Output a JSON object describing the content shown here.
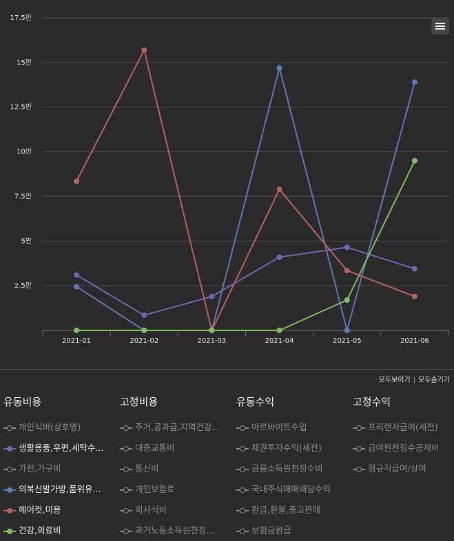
{
  "chart_data": {
    "type": "line",
    "categories": [
      "2021-01",
      "2021-02",
      "2021-03",
      "2021-04",
      "2021-05",
      "2021-06"
    ],
    "y_ticks": [
      "2.5만",
      "5만",
      "7.5만",
      "10만",
      "12.5만",
      "15만",
      "17.5만"
    ],
    "ylim": [
      0,
      175000
    ],
    "grid": true,
    "series": [
      {
        "name": "생활용품,우편,세탁수...",
        "color": "#7466b6",
        "values": [
          31000,
          8500,
          19000,
          41000,
          46500,
          34500
        ]
      },
      {
        "name": "의복신발가방,품위유...",
        "color": "#5f79b5",
        "values": [
          24500,
          0,
          0,
          147000,
          0,
          139000
        ]
      },
      {
        "name": "헤어컷,미용",
        "color": "#b5655c",
        "values": [
          83500,
          157000,
          0,
          79000,
          33500,
          19000
        ]
      },
      {
        "name": "건강,의료비",
        "color": "#83c062",
        "values": [
          0,
          0,
          0,
          0,
          17000,
          95000
        ]
      }
    ]
  },
  "menu_icon": "hamburger-icon",
  "toggles": {
    "show_all": "모두보이기",
    "separator": "|",
    "hide_all": "모두숨기기"
  },
  "legend": {
    "columns": [
      {
        "title": "유동비용",
        "items": [
          {
            "label": "개인식비(상호명)",
            "active": false
          },
          {
            "label": "생활용품,우편,세탁수...",
            "active": true,
            "color": "#7466b6"
          },
          {
            "label": "가전,가구비",
            "active": false
          },
          {
            "label": "의복신발가방,품위유...",
            "active": true,
            "color": "#5f79b5"
          },
          {
            "label": "헤어컷,미용",
            "active": true,
            "color": "#b5655c"
          },
          {
            "label": "건강,의료비",
            "active": true,
            "color": "#83c062"
          }
        ]
      },
      {
        "title": "고정비용",
        "items": [
          {
            "label": "주거,공과금,지역건강...",
            "active": false
          },
          {
            "label": "대중교통비",
            "active": false
          },
          {
            "label": "통신비",
            "active": false
          },
          {
            "label": "개인보험료",
            "active": false
          },
          {
            "label": "회사식비",
            "active": false
          },
          {
            "label": "과거노동소득원천징...",
            "active": false
          }
        ]
      },
      {
        "title": "유동수익",
        "items": [
          {
            "label": "아르바이트수입",
            "active": false
          },
          {
            "label": "채권투자수익(세전)",
            "active": false
          },
          {
            "label": "금융소득원천징수비",
            "active": false
          },
          {
            "label": "국내주식매매배당수익",
            "active": false
          },
          {
            "label": "환급,환불,중고판매",
            "active": false
          },
          {
            "label": "보험금환급",
            "active": false
          }
        ]
      },
      {
        "title": "고정수익",
        "items": [
          {
            "label": "프리랜서급여(세전)",
            "active": false
          },
          {
            "label": "급여원천징수공제비",
            "active": false
          },
          {
            "label": "정규직급여/상여",
            "active": false
          }
        ]
      }
    ]
  }
}
